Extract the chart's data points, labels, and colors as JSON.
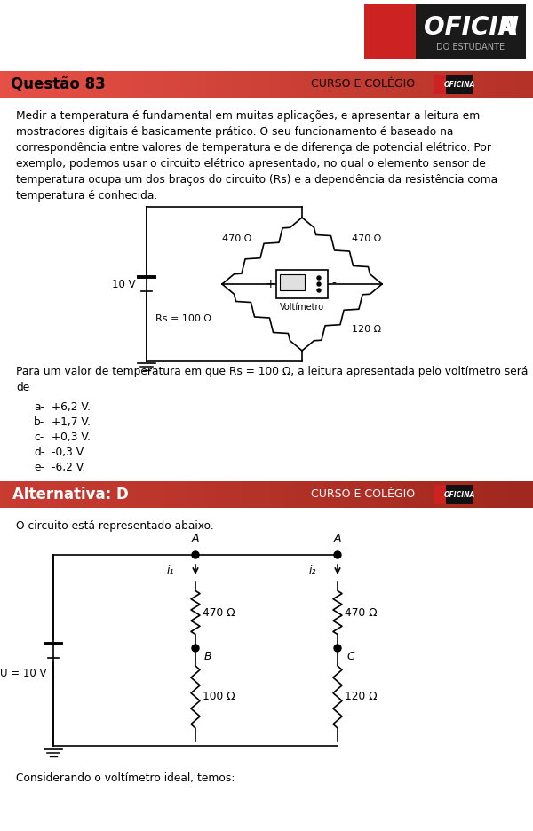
{
  "title": "Questão 83",
  "header_label": "CURSO E COLÉGIO",
  "problem_lines": [
    "Medir a temperatura é fundamental em muitas aplicações, e apresentar a leitura em",
    "mostradores digitais é basicamente prático. O seu funcionamento é baseado na",
    "correspondência entre valores de temperatura e de diferença de potencial elétrico. Por",
    "exemplo, podemos usar o circuito elétrico apresentado, no qual o elemento sensor de",
    "temperatura ocupa um dos braços do circuito (Rs) e a dependência da resistência coma",
    "temperatura é conhecida."
  ],
  "question_line1": "Para um valor de temperatura em que Rs = 100 Ω, a leitura apresentada pelo voltímetro será",
  "question_line2": "de",
  "options": [
    [
      "a-",
      "+6,2 V."
    ],
    [
      "b-",
      "+1,7 V."
    ],
    [
      "c-",
      "+0,3 V."
    ],
    [
      "d-",
      "-0,3 V."
    ],
    [
      "e-",
      "-6,2 V."
    ]
  ],
  "answer_label": "Alternativa: D",
  "answer_header": "CURSO E COLÉGIO",
  "solution_text": "O circuito está representado abaixo.",
  "final_text": "Considerando o voltímetro ideal, temos:"
}
